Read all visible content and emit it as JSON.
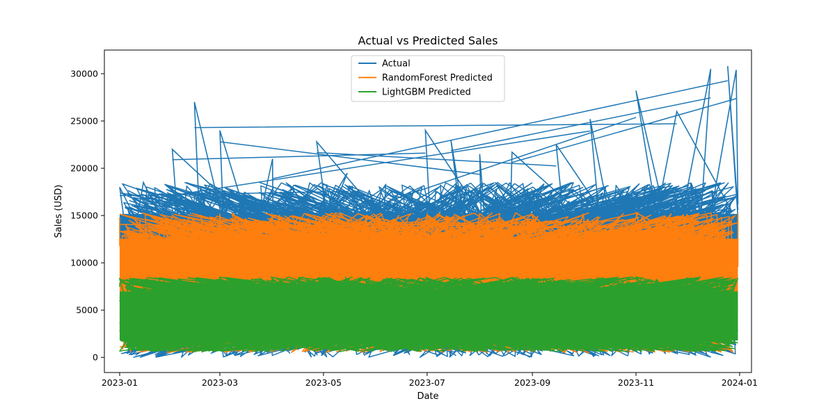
{
  "chart_data": {
    "type": "line",
    "title": "Actual vs Predicted Sales",
    "xlabel": "Date",
    "ylabel": "Sales (USD)",
    "x_type": "date",
    "xlim": [
      "2022-12-23",
      "2024-01-08"
    ],
    "ylim": [
      -1600,
      32500
    ],
    "x_ticks": [
      "2023-01-01",
      "2023-03-01",
      "2023-05-01",
      "2023-07-01",
      "2023-09-01",
      "2023-11-01",
      "2024-01-01"
    ],
    "x_tick_labels": [
      "2023-01",
      "2023-03",
      "2023-05",
      "2023-07",
      "2023-09",
      "2023-11",
      "2024-01"
    ],
    "y_ticks": [
      0,
      5000,
      10000,
      15000,
      20000,
      25000,
      30000
    ],
    "y_tick_labels": [
      "0",
      "5000",
      "10000",
      "15000",
      "20000",
      "25000",
      "30000"
    ],
    "grid": false,
    "legend_position": "upper-center",
    "note_points_are_unordered_dates": true,
    "series": [
      {
        "name": "Actual",
        "color": "#1f77b4",
        "band": [
          0,
          18500
        ],
        "x": [
          "2023-01-01",
          "2023-01-15",
          "2023-02-01",
          "2023-02-14",
          "2023-03-01",
          "2023-04-01",
          "2023-04-27",
          "2023-05-15",
          "2023-06-10",
          "2023-06-30",
          "2023-07-15",
          "2023-08-01",
          "2023-08-20",
          "2023-09-15",
          "2023-10-05",
          "2023-11-01",
          "2023-11-25",
          "2023-12-15",
          "2023-12-25",
          "2023-12-30"
        ],
        "y": [
          18000,
          18500,
          22000,
          27000,
          24000,
          21000,
          22800,
          19500,
          17500,
          24000,
          23000,
          21500,
          21700,
          22500,
          25200,
          28200,
          26000,
          30500,
          30800,
          30400
        ]
      },
      {
        "name": "RandomForest Predicted",
        "color": "#ff7f0e",
        "band": [
          500,
          15300
        ],
        "x": [
          "2023-01-01",
          "2023-02-01",
          "2023-03-01",
          "2023-04-01",
          "2023-05-01",
          "2023-06-01",
          "2023-07-01",
          "2023-08-01",
          "2023-09-01",
          "2023-10-01",
          "2023-11-01",
          "2023-12-01",
          "2023-12-31"
        ],
        "y": [
          14800,
          15000,
          15200,
          15100,
          15000,
          14800,
          15100,
          15200,
          15100,
          15200,
          15300,
          15100,
          15200
        ]
      },
      {
        "name": "LightGBM Predicted",
        "color": "#2ca02c",
        "band": [
          600,
          8500
        ],
        "x": [
          "2023-01-01",
          "2023-03-01",
          "2023-05-01",
          "2023-07-01",
          "2023-09-01",
          "2023-11-01",
          "2023-12-31"
        ],
        "y": [
          8300,
          8500,
          8400,
          8300,
          8400,
          8500,
          8400
        ]
      }
    ]
  }
}
